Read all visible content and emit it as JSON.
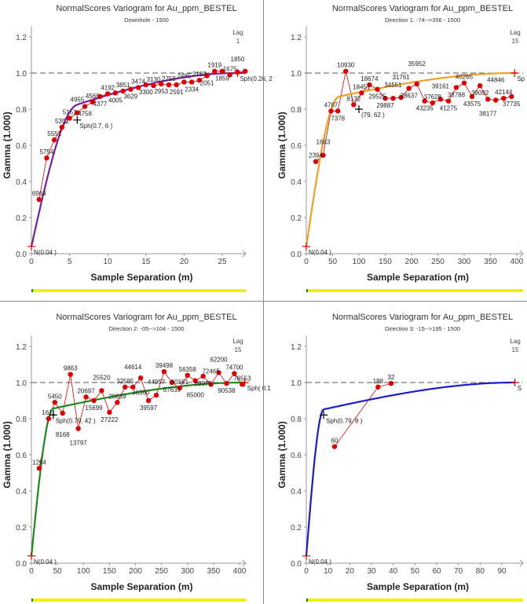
{
  "chart_data": [
    {
      "type": "line",
      "title": "NormalScores  Variogram for Au_ppm_BESTEL",
      "subtitle": "Downhole - 1500",
      "lag_label": "Lag",
      "lag_value": "1",
      "xlabel": "Sample Separation (m)",
      "ylabel": "Gamma (1.000)",
      "xlim": [
        0,
        28
      ],
      "xticks": [
        0,
        5,
        10,
        15,
        20,
        25
      ],
      "ylim": [
        0,
        1.2
      ],
      "yticks": [
        "0.0",
        "0.2",
        "0.4",
        "0.6",
        "0.8",
        "1.0",
        "1.2"
      ],
      "sill_line": 1.0,
      "model_color": "#7b1fa2",
      "point_color": "#e00000",
      "model": {
        "nugget": 0.04,
        "structures": [
          {
            "type": "Sph",
            "sill": 0.7,
            "range": 6
          },
          {
            "type": "Sph",
            "sill": 0.26,
            "range": 27
          }
        ]
      },
      "model_labels": [
        {
          "text": "N(0.04 )",
          "x": 0,
          "y": 0.04
        },
        {
          "text": "Sph(0.7, 6 )",
          "x": 6,
          "y": 0.74
        },
        {
          "text": "Sph(0.26, 2",
          "x": 27,
          "y": 1.0
        }
      ],
      "points": [
        {
          "x": 1,
          "y": 0.3,
          "n": "6964"
        },
        {
          "x": 2,
          "y": 0.53,
          "n": "5754"
        },
        {
          "x": 3,
          "y": 0.63,
          "n": "5551"
        },
        {
          "x": 4,
          "y": 0.7,
          "n": "5351"
        },
        {
          "x": 5,
          "y": 0.75,
          "n": "5151"
        },
        {
          "x": 6,
          "y": 0.78,
          "n": "4955"
        },
        {
          "x": 7,
          "y": 0.815,
          "n": "4758"
        },
        {
          "x": 8,
          "y": 0.84,
          "n": "4566"
        },
        {
          "x": 9,
          "y": 0.87,
          "n": "4377"
        },
        {
          "x": 10,
          "y": 0.885,
          "n": "4192"
        },
        {
          "x": 11,
          "y": 0.89,
          "n": "4005"
        },
        {
          "x": 12,
          "y": 0.9,
          "n": "3851"
        },
        {
          "x": 13,
          "y": 0.91,
          "n": "3629"
        },
        {
          "x": 14,
          "y": 0.92,
          "n": "3474"
        },
        {
          "x": 15,
          "y": 0.935,
          "n": "3300"
        },
        {
          "x": 16,
          "y": 0.93,
          "n": "3130"
        },
        {
          "x": 17,
          "y": 0.94,
          "n": "2953"
        },
        {
          "x": 18,
          "y": 0.935,
          "n": "2759"
        },
        {
          "x": 19,
          "y": 0.935,
          "n": "2591"
        },
        {
          "x": 20,
          "y": 0.95,
          "n": "2485"
        },
        {
          "x": 21,
          "y": 0.95,
          "n": "2334"
        },
        {
          "x": 22,
          "y": 0.96,
          "n": "2183"
        },
        {
          "x": 23,
          "y": 0.985,
          "n": "2051"
        },
        {
          "x": 24,
          "y": 1.01,
          "n": "1919"
        },
        {
          "x": 25,
          "y": 1.01,
          "n": "1859"
        },
        {
          "x": 26,
          "y": 0.99,
          "n": "1675"
        },
        {
          "x": 27,
          "y": 1.005,
          "n": "1850"
        },
        {
          "x": 28,
          "y": 1.01,
          "n": ""
        }
      ]
    },
    {
      "type": "line",
      "title": "NormalScores  Variogram for Au_ppm_BESTEL",
      "subtitle": "Direction 1: -74-->356 - 1500",
      "lag_label": "Lag",
      "lag_value": "15",
      "xlabel": "Sample Separation (m)",
      "ylabel": "Gamma (1.000)",
      "xlim": [
        0,
        400
      ],
      "xticks": [
        0,
        50,
        100,
        150,
        200,
        250,
        300,
        350,
        400
      ],
      "ylim": [
        0,
        1.2
      ],
      "yticks": [
        "0.0",
        "0.2",
        "0.4",
        "0.6",
        "0.8",
        "1.0",
        "1.2"
      ],
      "sill_line": 1.0,
      "model_color": "#f0a020",
      "point_color": "#e00000",
      "model": {
        "nugget": 0.04,
        "structures": [
          {
            "type": "Sph",
            "sill": 0.79,
            "range": 62
          },
          {
            "type": "Sph",
            "sill": 0.17,
            "range": 396
          }
        ]
      },
      "model_labels": [
        {
          "text": "N(0.04 )",
          "x": 0,
          "y": 0.04
        },
        {
          "text": "(79, 62 )",
          "x": 100,
          "y": 0.8
        },
        {
          "text": "Sp",
          "x": 396,
          "y": 1.0
        }
      ],
      "points": [
        {
          "x": 18,
          "y": 0.51,
          "n": "2394"
        },
        {
          "x": 32,
          "y": 0.545,
          "n": "1683"
        },
        {
          "x": 47,
          "y": 0.79,
          "n": "4707"
        },
        {
          "x": 60,
          "y": 0.79,
          "n": "7378"
        },
        {
          "x": 75,
          "y": 1.01,
          "n": "10930"
        },
        {
          "x": 90,
          "y": 0.825,
          "n": "8132"
        },
        {
          "x": 105,
          "y": 0.89,
          "n": "18451"
        },
        {
          "x": 120,
          "y": 0.935,
          "n": "18674"
        },
        {
          "x": 135,
          "y": 0.91,
          "n": "29525"
        },
        {
          "x": 150,
          "y": 0.86,
          "n": "29887"
        },
        {
          "x": 165,
          "y": 0.86,
          "n": "34551"
        },
        {
          "x": 180,
          "y": 0.865,
          "n": "31761"
        },
        {
          "x": 195,
          "y": 0.915,
          "n": "28637"
        },
        {
          "x": 210,
          "y": 0.94,
          "n": "35952"
        },
        {
          "x": 225,
          "y": 0.845,
          "n": "43235"
        },
        {
          "x": 240,
          "y": 0.835,
          "n": "37628"
        },
        {
          "x": 255,
          "y": 0.855,
          "n": "39161"
        },
        {
          "x": 270,
          "y": 0.845,
          "n": "41275"
        },
        {
          "x": 285,
          "y": 0.92,
          "n": "38788"
        },
        {
          "x": 300,
          "y": 0.945,
          "n": "40265"
        },
        {
          "x": 315,
          "y": 0.87,
          "n": "43575"
        },
        {
          "x": 330,
          "y": 0.93,
          "n": "39092"
        },
        {
          "x": 345,
          "y": 0.855,
          "n": "38177"
        },
        {
          "x": 360,
          "y": 0.85,
          "n": "44846"
        },
        {
          "x": 375,
          "y": 0.86,
          "n": "42144"
        },
        {
          "x": 390,
          "y": 0.87,
          "n": "37735"
        }
      ]
    },
    {
      "type": "line",
      "title": "NormalScores  Variogram for Au_ppm_BESTEL",
      "subtitle": "Direction 2: -05-->104 - 1500",
      "lag_label": "Lag",
      "lag_value": "15",
      "xlabel": "Sample Separation (m)",
      "ylabel": "Gamma (1.000)",
      "xlim": [
        0,
        410
      ],
      "xticks": [
        0,
        50,
        100,
        150,
        200,
        250,
        300,
        350,
        400
      ],
      "ylim": [
        0,
        1.2
      ],
      "yticks": [
        "0.0",
        "0.2",
        "0.4",
        "0.6",
        "0.8",
        "1.0",
        "1.2"
      ],
      "sill_line": 1.0,
      "model_color": "#1a8a1a",
      "point_color": "#e00000",
      "model": {
        "nugget": 0.04,
        "structures": [
          {
            "type": "Sph",
            "sill": 0.79,
            "range": 42
          },
          {
            "type": "Sph",
            "sill": 0.17,
            "range": 410
          }
        ]
      },
      "model_labels": [
        {
          "text": "N(0.04 )",
          "x": 0,
          "y": 0.04
        },
        {
          "text": "Sph(0.79, 42 )",
          "x": 42,
          "y": 0.82
        },
        {
          "text": "Sph( 0.1",
          "x": 410,
          "y": 1.0
        }
      ],
      "points": [
        {
          "x": 15,
          "y": 0.525,
          "n": "1294"
        },
        {
          "x": 33,
          "y": 0.8,
          "n": "1611"
        },
        {
          "x": 45,
          "y": 0.89,
          "n": "5450"
        },
        {
          "x": 60,
          "y": 0.83,
          "n": "8168"
        },
        {
          "x": 75,
          "y": 1.045,
          "n": "9863"
        },
        {
          "x": 90,
          "y": 0.745,
          "n": "13797"
        },
        {
          "x": 105,
          "y": 0.92,
          "n": "20697"
        },
        {
          "x": 120,
          "y": 0.9,
          "n": "15699"
        },
        {
          "x": 135,
          "y": 0.955,
          "n": "25520"
        },
        {
          "x": 150,
          "y": 0.835,
          "n": "27222"
        },
        {
          "x": 165,
          "y": 0.89,
          "n": "28639"
        },
        {
          "x": 180,
          "y": 0.975,
          "n": "32585"
        },
        {
          "x": 195,
          "y": 0.975,
          "n": "44614"
        },
        {
          "x": 210,
          "y": 1.025,
          "n": "36360"
        },
        {
          "x": 225,
          "y": 0.9,
          "n": "39597"
        },
        {
          "x": 240,
          "y": 0.93,
          "n": "44957"
        },
        {
          "x": 255,
          "y": 1.06,
          "n": "39498"
        },
        {
          "x": 270,
          "y": 1.0,
          "n": "67635"
        },
        {
          "x": 285,
          "y": 0.97,
          "n": "60161"
        },
        {
          "x": 300,
          "y": 1.04,
          "n": "56358"
        },
        {
          "x": 315,
          "y": 1.01,
          "n": "65000"
        },
        {
          "x": 330,
          "y": 1.035,
          "n": "69975"
        },
        {
          "x": 345,
          "y": 0.99,
          "n": "72465"
        },
        {
          "x": 360,
          "y": 1.055,
          "n": "62200"
        },
        {
          "x": 375,
          "y": 0.995,
          "n": "90538"
        },
        {
          "x": 390,
          "y": 1.05,
          "n": "74700"
        },
        {
          "x": 405,
          "y": 0.99,
          "n": "78553"
        }
      ]
    },
    {
      "type": "line",
      "title": "NormalScores  Variogram for Au_ppm_BESTEL",
      "subtitle": "Direction 3: -15-->195 - 1500",
      "lag_label": "Lag",
      "lag_value": "15",
      "xlabel": "Sample Separation (m)",
      "ylabel": "Gamma (1.000)",
      "xlim": [
        0,
        96
      ],
      "xticks": [
        0,
        10,
        20,
        30,
        40,
        50,
        60,
        70,
        80,
        90
      ],
      "ylim": [
        0,
        1.2
      ],
      "yticks": [
        "0.0",
        "0.2",
        "0.4",
        "0.6",
        "0.8",
        "1.0",
        "1.2"
      ],
      "sill_line": 1.0,
      "model_color": "#1a1ad0",
      "point_color": "#e00000",
      "model": {
        "nugget": 0.04,
        "structures": [
          {
            "type": "Sph",
            "sill": 0.79,
            "range": 8
          },
          {
            "type": "Sph",
            "sill": 0.17,
            "range": 96
          }
        ]
      },
      "model_labels": [
        {
          "text": "N(0.04 )",
          "x": 0,
          "y": 0.04
        },
        {
          "text": "Sph(0.79, 8 )",
          "x": 8,
          "y": 0.82
        },
        {
          "text": "S",
          "x": 96,
          "y": 1.0
        }
      ],
      "points": [
        {
          "x": 13,
          "y": 0.645,
          "n": "60"
        },
        {
          "x": 33,
          "y": 0.975,
          "n": "188"
        },
        {
          "x": 39,
          "y": 0.995,
          "n": "32"
        }
      ]
    }
  ]
}
